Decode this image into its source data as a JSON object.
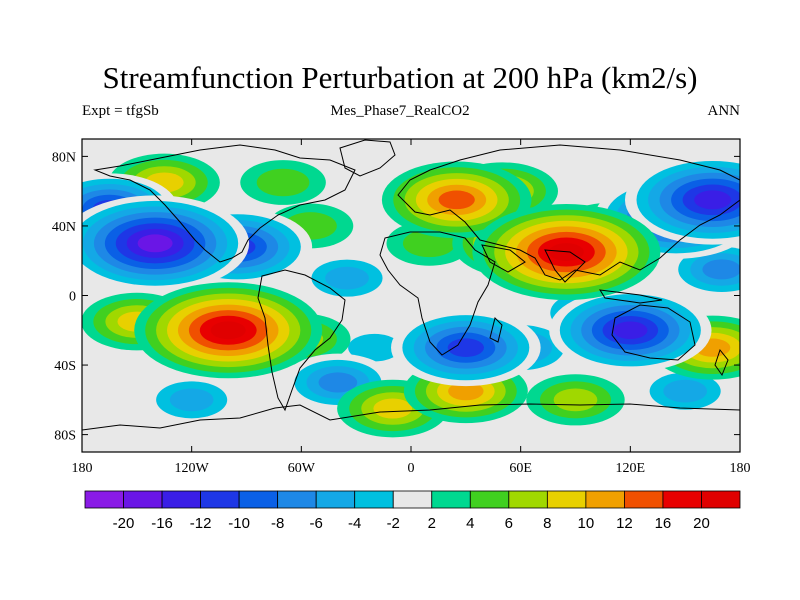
{
  "header": {
    "title": "Streamfunction Perturbation at 200 hPa (km2/s)",
    "left": "Expt = tfgSb",
    "center": "Mes_Phase7_RealCO2",
    "right": "ANN"
  },
  "map": {
    "lon_range": [
      -180,
      180
    ],
    "lat_range": [
      -90,
      90
    ],
    "lat_ticks": [
      {
        "value": 80,
        "label": "80N"
      },
      {
        "value": 40,
        "label": "40N"
      },
      {
        "value": 0,
        "label": "0"
      },
      {
        "value": -40,
        "label": "40S"
      },
      {
        "value": -80,
        "label": "80S"
      }
    ],
    "lon_ticks": [
      {
        "value": -180,
        "label": "180"
      },
      {
        "value": -120,
        "label": "120W"
      },
      {
        "value": -60,
        "label": "60W"
      },
      {
        "value": 0,
        "label": "0"
      },
      {
        "value": 60,
        "label": "60E"
      },
      {
        "value": 120,
        "label": "120E"
      },
      {
        "value": 180,
        "label": "180"
      }
    ],
    "field_centers": [
      {
        "lon": -140,
        "lat": 30,
        "value": -20
      },
      {
        "lon": -95,
        "lat": 28,
        "value": -14
      },
      {
        "lon": -165,
        "lat": 50,
        "value": -12
      },
      {
        "lon": -135,
        "lat": 65,
        "value": 8
      },
      {
        "lon": -70,
        "lat": 65,
        "value": 4
      },
      {
        "lon": -55,
        "lat": 40,
        "value": 4
      },
      {
        "lon": -35,
        "lat": 10,
        "value": -6
      },
      {
        "lon": -100,
        "lat": -20,
        "value": 20
      },
      {
        "lon": -150,
        "lat": -15,
        "value": 8
      },
      {
        "lon": -60,
        "lat": -25,
        "value": 6
      },
      {
        "lon": -40,
        "lat": -50,
        "value": -8
      },
      {
        "lon": -120,
        "lat": -60,
        "value": -6
      },
      {
        "lon": 25,
        "lat": 55,
        "value": 14
      },
      {
        "lon": 50,
        "lat": 60,
        "value": 8
      },
      {
        "lon": 10,
        "lat": 30,
        "value": 4
      },
      {
        "lon": 85,
        "lat": 25,
        "value": 20
      },
      {
        "lon": 60,
        "lat": 30,
        "value": 12
      },
      {
        "lon": 110,
        "lat": 35,
        "value": 10
      },
      {
        "lon": 145,
        "lat": 45,
        "value": -16
      },
      {
        "lon": 165,
        "lat": 55,
        "value": -18
      },
      {
        "lon": 30,
        "lat": -30,
        "value": -14
      },
      {
        "lon": 60,
        "lat": -30,
        "value": -8
      },
      {
        "lon": 120,
        "lat": -20,
        "value": -16
      },
      {
        "lon": 100,
        "lat": -10,
        "value": -8
      },
      {
        "lon": 165,
        "lat": -30,
        "value": 10
      },
      {
        "lon": 170,
        "lat": 15,
        "value": -8
      },
      {
        "lon": 150,
        "lat": -55,
        "value": -6
      },
      {
        "lon": -10,
        "lat": -65,
        "value": 8
      },
      {
        "lon": 30,
        "lat": -55,
        "value": 10
      },
      {
        "lon": 90,
        "lat": -60,
        "value": 6
      },
      {
        "lon": -20,
        "lat": -30,
        "value": -4
      }
    ]
  },
  "colorbar": {
    "levels": [
      "-20",
      "-16",
      "-12",
      "-10",
      "-8",
      "-6",
      "-4",
      "-2",
      "2",
      "4",
      "6",
      "8",
      "10",
      "12",
      "16",
      "20"
    ],
    "colors": [
      "#8a1be6",
      "#6a16e6",
      "#3a1ee6",
      "#1e37e6",
      "#0a60e6",
      "#1e88e6",
      "#14a8e6",
      "#00c0e0",
      "#e8e8e8",
      "#00d890",
      "#40d020",
      "#a0d800",
      "#e8d000",
      "#f0a000",
      "#f05000",
      "#e80000",
      "#e00000"
    ]
  }
}
